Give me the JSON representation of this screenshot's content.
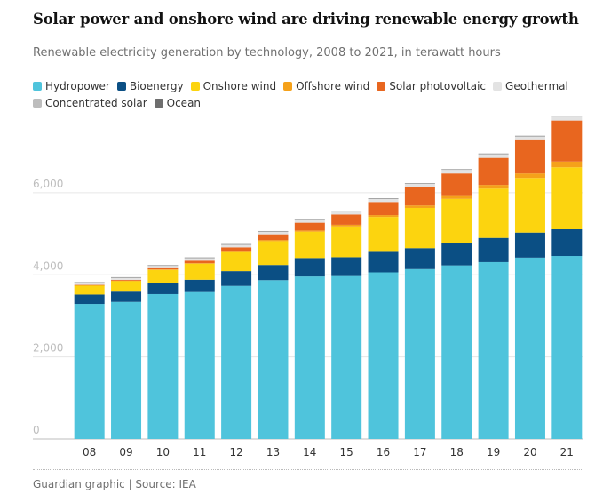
{
  "header": {
    "title": "Solar power and onshore wind are driving renewable energy growth",
    "subtitle": "Renewable electricity generation by technology, 2008 to 2021, in terawatt hours"
  },
  "footer": {
    "source": "Guardian graphic | Source: IEA"
  },
  "chart_data": {
    "type": "bar",
    "stacked": true,
    "ylim": [
      0,
      7600
    ],
    "yticks": [
      0,
      2000,
      4000,
      6000
    ],
    "ytick_labels": [
      "0",
      "2,000",
      "4,000",
      "6,000"
    ],
    "grid": true,
    "legend_position": "top",
    "categories": [
      "08",
      "09",
      "10",
      "11",
      "12",
      "13",
      "14",
      "15",
      "16",
      "17",
      "18",
      "19",
      "20",
      "21"
    ],
    "series": [
      {
        "name": "Hydropower",
        "color": "#4fc4dc",
        "values": [
          3290,
          3340,
          3530,
          3580,
          3730,
          3870,
          3960,
          3970,
          4060,
          4140,
          4230,
          4310,
          4420,
          4460
        ]
      },
      {
        "name": "Bioenergy",
        "color": "#0b4f84",
        "values": [
          230,
          250,
          270,
          300,
          360,
          370,
          450,
          460,
          500,
          510,
          540,
          590,
          610,
          650
        ]
      },
      {
        "name": "Onshore wind",
        "color": "#fcd40f",
        "values": [
          220,
          260,
          320,
          390,
          460,
          580,
          640,
          750,
          850,
          980,
          1080,
          1200,
          1330,
          1510
        ]
      },
      {
        "name": "Offshore wind",
        "color": "#f5a11a",
        "values": [
          5,
          8,
          12,
          16,
          20,
          28,
          30,
          40,
          45,
          60,
          70,
          90,
          110,
          140
        ]
      },
      {
        "name": "Solar photovoltaic",
        "color": "#e8661f",
        "values": [
          10,
          20,
          30,
          60,
          100,
          140,
          190,
          250,
          320,
          440,
          550,
          660,
          810,
          1000
        ]
      },
      {
        "name": "Geothermal",
        "color": "#e3e3e3",
        "values": [
          60,
          60,
          65,
          70,
          70,
          70,
          72,
          75,
          80,
          85,
          88,
          90,
          92,
          95
        ]
      },
      {
        "name": "Concentrated solar",
        "color": "#bdbdbd",
        "values": [
          2,
          3,
          4,
          5,
          6,
          8,
          9,
          10,
          11,
          12,
          12,
          13,
          14,
          15
        ]
      },
      {
        "name": "Ocean",
        "color": "#6e6e6e",
        "values": [
          1,
          1,
          1,
          1,
          1,
          1,
          1,
          1,
          1,
          1,
          1,
          1,
          1,
          1
        ]
      }
    ]
  }
}
